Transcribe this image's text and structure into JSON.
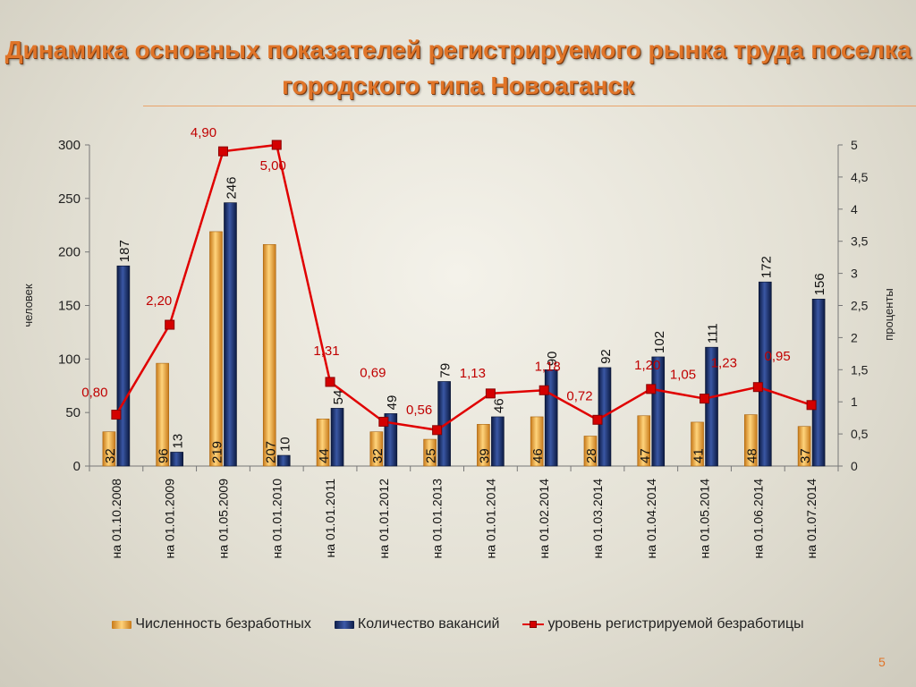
{
  "slide": {
    "title": "Динамика основных показателей регистрируемого рынка труда поселка городского типа Новоаганск",
    "page_number": "5"
  },
  "colors": {
    "title": "#e07428",
    "unemployed_bar": "#f0a030",
    "vacancy_bar": "#1a2f6a",
    "rate_line": "#e00000",
    "rate_label": "#c00000"
  },
  "chart_data": {
    "type": "bar",
    "categories": [
      "на 01.10.2008",
      "на 01.01.2009",
      "на 01.05.2009",
      "на 01.01.2010",
      "на 01.01.2011",
      "на 01.01.2012",
      "на 01.01.2013",
      "на 01.01.2014",
      "на 01.02.2014",
      "на 01.03.2014",
      "на 01.04.2014",
      "на 01.05.2014",
      "на 01.06.2014",
      "на 01.07.2014"
    ],
    "series": [
      {
        "name": "Численность безработных",
        "type": "bar",
        "axis": "left",
        "values": [
          32,
          96,
          219,
          207,
          44,
          32,
          25,
          39,
          46,
          28,
          47,
          41,
          48,
          37
        ]
      },
      {
        "name": "Количество вакансий",
        "type": "bar",
        "axis": "left",
        "values": [
          187,
          13,
          246,
          10,
          54,
          49,
          79,
          46,
          90,
          92,
          102,
          111,
          172,
          156
        ]
      },
      {
        "name": "уровень регистрируемой безработицы",
        "type": "line",
        "axis": "right",
        "values": [
          0.8,
          2.2,
          4.9,
          5.0,
          1.31,
          0.69,
          0.56,
          1.13,
          1.18,
          0.72,
          1.2,
          1.05,
          1.23,
          0.95
        ]
      }
    ],
    "rate_labels": [
      "0,80",
      "2,20",
      "4,90",
      "5,00",
      "1,31",
      "0,69",
      "0,56",
      "1,13",
      "1,18",
      "0,72",
      "1,20",
      "1,05",
      "1,23",
      "0,95"
    ],
    "ylabel": "человек",
    "y2label": "проценты",
    "ylim": [
      0,
      300
    ],
    "y2lim": [
      0,
      5
    ],
    "yticks": [
      "0",
      "50",
      "100",
      "150",
      "200",
      "250",
      "300"
    ],
    "y2ticks": [
      "0",
      "0,5",
      "1",
      "1,5",
      "2",
      "2,5",
      "3",
      "3,5",
      "4",
      "4,5",
      "5"
    ],
    "legend_position": "bottom",
    "grid": false
  }
}
